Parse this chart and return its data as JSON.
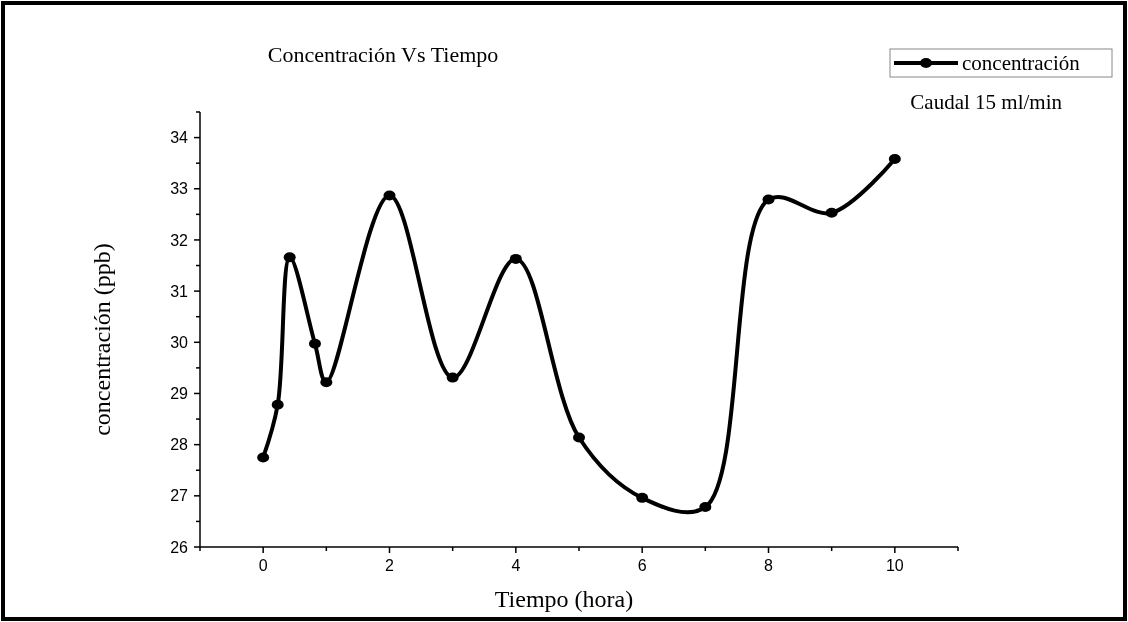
{
  "chart_data": {
    "type": "line",
    "title": "Concentración  Vs  Tiempo",
    "xlabel": "Tiempo (hora)",
    "ylabel": "concentración (ppb)",
    "annotations": [
      "Caudal 15 ml/min"
    ],
    "x": [
      0,
      0.23,
      0.42,
      0.82,
      1,
      2,
      3,
      4,
      5,
      6,
      7,
      8,
      9,
      10
    ],
    "series": [
      {
        "name": "concentración",
        "color": "#000000",
        "values": [
          27.75,
          28.78,
          31.66,
          29.97,
          29.22,
          32.87,
          29.31,
          31.63,
          28.14,
          26.96,
          26.78,
          32.79,
          32.53,
          33.58
        ]
      }
    ],
    "xlim": [
      -1,
      11
    ],
    "xticks": [
      {
        "value": -1,
        "label": null
      },
      0,
      {
        "value": 1,
        "label": null
      },
      2,
      {
        "value": 3,
        "label": null
      },
      4,
      {
        "value": 5,
        "label": null
      },
      6,
      {
        "value": 7,
        "label": null
      },
      8,
      {
        "value": 9,
        "label": null
      },
      10,
      {
        "value": 11,
        "label": null
      }
    ],
    "ylim": [
      26,
      34.5
    ],
    "yticks": [
      26,
      {
        "value": 26.5,
        "label": null
      },
      27,
      {
        "value": 27.5,
        "label": null
      },
      28,
      {
        "value": 28.5,
        "label": null
      },
      29,
      {
        "value": 29.5,
        "label": null
      },
      30,
      {
        "value": 30.5,
        "label": null
      },
      31,
      {
        "value": 31.5,
        "label": null
      },
      32,
      {
        "value": 32.5,
        "label": null
      },
      33,
      {
        "value": 33.5,
        "label": null
      },
      34,
      {
        "value": 34.5,
        "label": null
      }
    ],
    "grid": false,
    "legend": "top right",
    "marker": "circle",
    "line_style": "solid"
  }
}
